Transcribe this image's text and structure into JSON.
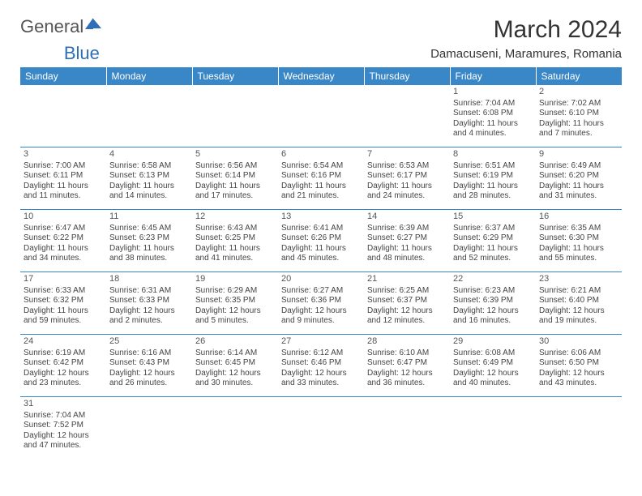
{
  "logo": {
    "part1": "General",
    "part2": "Blue"
  },
  "title": "March 2024",
  "subtitle": "Damacuseni, Maramures, Romania",
  "columns": [
    "Sunday",
    "Monday",
    "Tuesday",
    "Wednesday",
    "Thursday",
    "Friday",
    "Saturday"
  ],
  "colors": {
    "header_bg": "#3a87c8",
    "header_text": "#ffffff",
    "rule": "#3a87c8",
    "logo_accent": "#2e6fb5"
  },
  "weeks": [
    [
      null,
      null,
      null,
      null,
      null,
      {
        "n": "1",
        "sr": "Sunrise: 7:04 AM",
        "ss": "Sunset: 6:08 PM",
        "dl": "Daylight: 11 hours and 4 minutes."
      },
      {
        "n": "2",
        "sr": "Sunrise: 7:02 AM",
        "ss": "Sunset: 6:10 PM",
        "dl": "Daylight: 11 hours and 7 minutes."
      }
    ],
    [
      {
        "n": "3",
        "sr": "Sunrise: 7:00 AM",
        "ss": "Sunset: 6:11 PM",
        "dl": "Daylight: 11 hours and 11 minutes."
      },
      {
        "n": "4",
        "sr": "Sunrise: 6:58 AM",
        "ss": "Sunset: 6:13 PM",
        "dl": "Daylight: 11 hours and 14 minutes."
      },
      {
        "n": "5",
        "sr": "Sunrise: 6:56 AM",
        "ss": "Sunset: 6:14 PM",
        "dl": "Daylight: 11 hours and 17 minutes."
      },
      {
        "n": "6",
        "sr": "Sunrise: 6:54 AM",
        "ss": "Sunset: 6:16 PM",
        "dl": "Daylight: 11 hours and 21 minutes."
      },
      {
        "n": "7",
        "sr": "Sunrise: 6:53 AM",
        "ss": "Sunset: 6:17 PM",
        "dl": "Daylight: 11 hours and 24 minutes."
      },
      {
        "n": "8",
        "sr": "Sunrise: 6:51 AM",
        "ss": "Sunset: 6:19 PM",
        "dl": "Daylight: 11 hours and 28 minutes."
      },
      {
        "n": "9",
        "sr": "Sunrise: 6:49 AM",
        "ss": "Sunset: 6:20 PM",
        "dl": "Daylight: 11 hours and 31 minutes."
      }
    ],
    [
      {
        "n": "10",
        "sr": "Sunrise: 6:47 AM",
        "ss": "Sunset: 6:22 PM",
        "dl": "Daylight: 11 hours and 34 minutes."
      },
      {
        "n": "11",
        "sr": "Sunrise: 6:45 AM",
        "ss": "Sunset: 6:23 PM",
        "dl": "Daylight: 11 hours and 38 minutes."
      },
      {
        "n": "12",
        "sr": "Sunrise: 6:43 AM",
        "ss": "Sunset: 6:25 PM",
        "dl": "Daylight: 11 hours and 41 minutes."
      },
      {
        "n": "13",
        "sr": "Sunrise: 6:41 AM",
        "ss": "Sunset: 6:26 PM",
        "dl": "Daylight: 11 hours and 45 minutes."
      },
      {
        "n": "14",
        "sr": "Sunrise: 6:39 AM",
        "ss": "Sunset: 6:27 PM",
        "dl": "Daylight: 11 hours and 48 minutes."
      },
      {
        "n": "15",
        "sr": "Sunrise: 6:37 AM",
        "ss": "Sunset: 6:29 PM",
        "dl": "Daylight: 11 hours and 52 minutes."
      },
      {
        "n": "16",
        "sr": "Sunrise: 6:35 AM",
        "ss": "Sunset: 6:30 PM",
        "dl": "Daylight: 11 hours and 55 minutes."
      }
    ],
    [
      {
        "n": "17",
        "sr": "Sunrise: 6:33 AM",
        "ss": "Sunset: 6:32 PM",
        "dl": "Daylight: 11 hours and 59 minutes."
      },
      {
        "n": "18",
        "sr": "Sunrise: 6:31 AM",
        "ss": "Sunset: 6:33 PM",
        "dl": "Daylight: 12 hours and 2 minutes."
      },
      {
        "n": "19",
        "sr": "Sunrise: 6:29 AM",
        "ss": "Sunset: 6:35 PM",
        "dl": "Daylight: 12 hours and 5 minutes."
      },
      {
        "n": "20",
        "sr": "Sunrise: 6:27 AM",
        "ss": "Sunset: 6:36 PM",
        "dl": "Daylight: 12 hours and 9 minutes."
      },
      {
        "n": "21",
        "sr": "Sunrise: 6:25 AM",
        "ss": "Sunset: 6:37 PM",
        "dl": "Daylight: 12 hours and 12 minutes."
      },
      {
        "n": "22",
        "sr": "Sunrise: 6:23 AM",
        "ss": "Sunset: 6:39 PM",
        "dl": "Daylight: 12 hours and 16 minutes."
      },
      {
        "n": "23",
        "sr": "Sunrise: 6:21 AM",
        "ss": "Sunset: 6:40 PM",
        "dl": "Daylight: 12 hours and 19 minutes."
      }
    ],
    [
      {
        "n": "24",
        "sr": "Sunrise: 6:19 AM",
        "ss": "Sunset: 6:42 PM",
        "dl": "Daylight: 12 hours and 23 minutes."
      },
      {
        "n": "25",
        "sr": "Sunrise: 6:16 AM",
        "ss": "Sunset: 6:43 PM",
        "dl": "Daylight: 12 hours and 26 minutes."
      },
      {
        "n": "26",
        "sr": "Sunrise: 6:14 AM",
        "ss": "Sunset: 6:45 PM",
        "dl": "Daylight: 12 hours and 30 minutes."
      },
      {
        "n": "27",
        "sr": "Sunrise: 6:12 AM",
        "ss": "Sunset: 6:46 PM",
        "dl": "Daylight: 12 hours and 33 minutes."
      },
      {
        "n": "28",
        "sr": "Sunrise: 6:10 AM",
        "ss": "Sunset: 6:47 PM",
        "dl": "Daylight: 12 hours and 36 minutes."
      },
      {
        "n": "29",
        "sr": "Sunrise: 6:08 AM",
        "ss": "Sunset: 6:49 PM",
        "dl": "Daylight: 12 hours and 40 minutes."
      },
      {
        "n": "30",
        "sr": "Sunrise: 6:06 AM",
        "ss": "Sunset: 6:50 PM",
        "dl": "Daylight: 12 hours and 43 minutes."
      }
    ],
    [
      {
        "n": "31",
        "sr": "Sunrise: 7:04 AM",
        "ss": "Sunset: 7:52 PM",
        "dl": "Daylight: 12 hours and 47 minutes."
      },
      null,
      null,
      null,
      null,
      null,
      null
    ]
  ]
}
